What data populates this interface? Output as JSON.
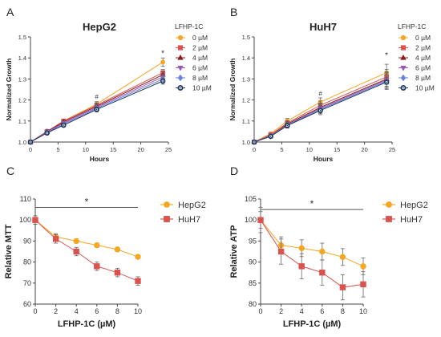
{
  "figure": {
    "panel_labels": [
      "A",
      "B",
      "C",
      "D"
    ]
  },
  "chart_data": [
    {
      "panel": "A",
      "type": "line",
      "title": "HepG2",
      "xlabel": "Hours",
      "ylabel": "Normalized Growth",
      "xlim": [
        0,
        25
      ],
      "ylim": [
        1.0,
        1.5
      ],
      "xticks": [
        0,
        5,
        10,
        15,
        20,
        25
      ],
      "yticks": [
        1.0,
        1.1,
        1.2,
        1.3,
        1.4,
        1.5
      ],
      "xtick_labels": [
        "0",
        "5",
        "10",
        "15",
        "20",
        "25"
      ],
      "ytick_labels": [
        "1.0",
        "1.1",
        "1.2",
        "1.3",
        "1.4",
        "1.5"
      ],
      "legend_title": "LFHP-1C",
      "legend_position": "right",
      "annotations": [
        {
          "text": "#",
          "x": 12,
          "y": 1.205
        },
        {
          "text": "*",
          "x": 24,
          "y": 1.41
        }
      ],
      "x": [
        0,
        3,
        6,
        12,
        24
      ],
      "series": [
        {
          "name": "0 µM",
          "color": "#f5a623",
          "marker": "circle",
          "values": [
            1.0,
            1.05,
            1.1,
            1.18,
            1.38
          ],
          "errors": [
            0,
            0.005,
            0.008,
            0.012,
            0.02
          ]
        },
        {
          "name": "2 µM",
          "color": "#d9534f",
          "marker": "square",
          "values": [
            1.0,
            1.05,
            1.1,
            1.175,
            1.33
          ],
          "errors": [
            0,
            0.005,
            0.008,
            0.012,
            0.015
          ]
        },
        {
          "name": "4 µM",
          "color": "#8b1a1a",
          "marker": "triangle-up",
          "values": [
            1.0,
            1.05,
            1.095,
            1.17,
            1.32
          ],
          "errors": [
            0,
            0.005,
            0.008,
            0.012,
            0.015
          ]
        },
        {
          "name": "6 µM",
          "color": "#9b59b6",
          "marker": "triangle-down",
          "values": [
            1.0,
            1.048,
            1.09,
            1.165,
            1.31
          ],
          "errors": [
            0,
            0.005,
            0.008,
            0.012,
            0.015
          ]
        },
        {
          "name": "8 µM",
          "color": "#6a7fdb",
          "marker": "diamond",
          "values": [
            1.0,
            1.045,
            1.085,
            1.16,
            1.3
          ],
          "errors": [
            0,
            0.005,
            0.008,
            0.012,
            0.015
          ]
        },
        {
          "name": "10 µM",
          "color": "#1f3a5f",
          "marker": "circle-open",
          "values": [
            1.0,
            1.043,
            1.08,
            1.155,
            1.29
          ],
          "errors": [
            0,
            0.005,
            0.008,
            0.012,
            0.015
          ]
        }
      ]
    },
    {
      "panel": "B",
      "type": "line",
      "title": "HuH7",
      "xlabel": "Hours",
      "ylabel": "Normalized Growth",
      "xlim": [
        0,
        25
      ],
      "ylim": [
        1.0,
        1.5
      ],
      "xticks": [
        0,
        5,
        10,
        15,
        20,
        25
      ],
      "yticks": [
        1.0,
        1.1,
        1.2,
        1.3,
        1.4,
        1.5
      ],
      "xtick_labels": [
        "0",
        "5",
        "10",
        "15",
        "20",
        "25"
      ],
      "ytick_labels": [
        "1.0",
        "1.1",
        "1.2",
        "1.3",
        "1.4",
        "1.5"
      ],
      "legend_title": "LFHP-1C",
      "legend_position": "right",
      "annotations": [
        {
          "text": "#",
          "x": 12,
          "y": 1.22
        },
        {
          "text": "*",
          "x": 24,
          "y": 1.4
        }
      ],
      "x": [
        0,
        3,
        6,
        12,
        24
      ],
      "series": [
        {
          "name": "0 µM",
          "color": "#f5a623",
          "marker": "circle",
          "values": [
            1.0,
            1.04,
            1.1,
            1.19,
            1.33
          ],
          "errors": [
            0,
            0.006,
            0.012,
            0.02,
            0.04
          ]
        },
        {
          "name": "2 µM",
          "color": "#d9534f",
          "marker": "square",
          "values": [
            1.0,
            1.035,
            1.09,
            1.175,
            1.31
          ],
          "errors": [
            0,
            0.006,
            0.012,
            0.02,
            0.035
          ]
        },
        {
          "name": "4 µM",
          "color": "#8b1a1a",
          "marker": "triangle-up",
          "values": [
            1.0,
            1.03,
            1.085,
            1.165,
            1.3
          ],
          "errors": [
            0,
            0.006,
            0.012,
            0.02,
            0.035
          ]
        },
        {
          "name": "6 µM",
          "color": "#9b59b6",
          "marker": "triangle-down",
          "values": [
            1.0,
            1.03,
            1.08,
            1.16,
            1.295
          ],
          "errors": [
            0,
            0.006,
            0.012,
            0.02,
            0.035
          ]
        },
        {
          "name": "8 µM",
          "color": "#6a7fdb",
          "marker": "diamond",
          "values": [
            1.0,
            1.028,
            1.08,
            1.155,
            1.29
          ],
          "errors": [
            0,
            0.006,
            0.012,
            0.02,
            0.035
          ]
        },
        {
          "name": "10 µM",
          "color": "#1f3a5f",
          "marker": "circle-open",
          "values": [
            1.0,
            1.027,
            1.078,
            1.15,
            1.285
          ],
          "errors": [
            0,
            0.006,
            0.012,
            0.02,
            0.035
          ]
        }
      ]
    },
    {
      "panel": "C",
      "type": "line",
      "title": "",
      "xlabel": "LFHP-1C (µM)",
      "ylabel": "Relative MTT",
      "xlim": [
        0,
        10
      ],
      "ylim": [
        60,
        110
      ],
      "xticks": [
        0,
        2,
        4,
        6,
        8,
        10
      ],
      "yticks": [
        60,
        70,
        80,
        90,
        100,
        110
      ],
      "xtick_labels": [
        "0",
        "2",
        "4",
        "6",
        "8",
        "10"
      ],
      "ytick_labels": [
        "60",
        "70",
        "80",
        "90",
        "100",
        "110"
      ],
      "legend_position": "right",
      "significance": {
        "text": "*",
        "from": 0,
        "to": 10,
        "y": 106
      },
      "x": [
        0,
        2,
        4,
        6,
        8,
        10
      ],
      "series": [
        {
          "name": "HepG2",
          "color": "#f5a623",
          "marker": "circle",
          "values": [
            100,
            92,
            90,
            88,
            86,
            82.5
          ],
          "errors": [
            2,
            1.5,
            1,
            1,
            1,
            1
          ]
        },
        {
          "name": "HuH7",
          "color": "#d9534f",
          "marker": "square",
          "values": [
            100,
            91,
            85,
            78,
            75,
            71
          ],
          "errors": [
            2,
            2,
            2,
            2,
            2,
            2
          ]
        }
      ]
    },
    {
      "panel": "D",
      "type": "line",
      "title": "",
      "xlabel": "LFHP-1C (µM)",
      "ylabel": "Relative ATP",
      "xlim": [
        0,
        10
      ],
      "ylim": [
        80,
        105
      ],
      "xticks": [
        0,
        2,
        4,
        6,
        8,
        10
      ],
      "yticks": [
        80,
        85,
        90,
        95,
        100,
        105
      ],
      "xtick_labels": [
        "0",
        "2",
        "4",
        "6",
        "8",
        "10"
      ],
      "ytick_labels": [
        "80",
        "85",
        "90",
        "95",
        "100",
        "105"
      ],
      "legend_position": "right",
      "significance": {
        "text": "*",
        "from": 0,
        "to": 10,
        "y": 102.5
      },
      "x": [
        0,
        2,
        4,
        6,
        8,
        10
      ],
      "series": [
        {
          "name": "HepG2",
          "color": "#f5a623",
          "marker": "circle",
          "values": [
            100,
            94,
            93.3,
            92.5,
            91.2,
            89
          ],
          "errors": [
            2,
            2,
            2,
            2,
            2,
            2
          ]
        },
        {
          "name": "HuH7",
          "color": "#d9534f",
          "marker": "square",
          "values": [
            100,
            92.5,
            89,
            87.5,
            84,
            84.7
          ],
          "errors": [
            3,
            3,
            3,
            3,
            3,
            3
          ]
        }
      ]
    }
  ]
}
